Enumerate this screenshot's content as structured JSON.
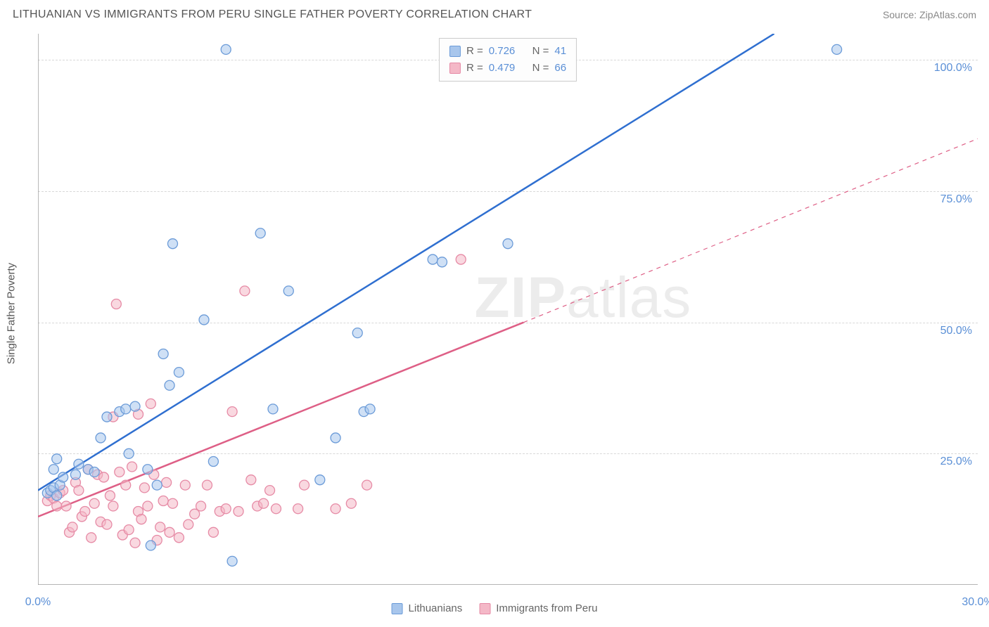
{
  "title": "LITHUANIAN VS IMMIGRANTS FROM PERU SINGLE FATHER POVERTY CORRELATION CHART",
  "source_label": "Source: ZipAtlas.com",
  "ylabel": "Single Father Poverty",
  "watermark_main": "ZIP",
  "watermark_sub": "atlas",
  "chart": {
    "type": "scatter",
    "xlim": [
      0,
      30
    ],
    "ylim": [
      0,
      105
    ],
    "xticks": [
      {
        "v": 0,
        "label": "0.0%"
      },
      {
        "v": 30,
        "label": "30.0%"
      }
    ],
    "yticks": [
      {
        "v": 25,
        "label": "25.0%"
      },
      {
        "v": 50,
        "label": "50.0%"
      },
      {
        "v": 75,
        "label": "75.0%"
      },
      {
        "v": 100,
        "label": "100.0%"
      }
    ],
    "background_color": "#ffffff",
    "grid_color": "#d8d8d8",
    "axis_color": "#888888",
    "tick_label_color": "#5a8fd6",
    "marker_radius": 7,
    "marker_opacity": 0.55,
    "line_width": 2.5,
    "series": [
      {
        "id": "lithuanians",
        "label": "Lithuanians",
        "color_fill": "#a8c6ec",
        "color_stroke": "#6b9bd8",
        "line_color": "#2f6fd0",
        "line_dash": "none",
        "R": "0.726",
        "N": "41",
        "trend": {
          "x1": 0,
          "y1": 18,
          "x2": 23.5,
          "y2": 105
        },
        "points": [
          [
            0.3,
            17.5
          ],
          [
            0.4,
            18
          ],
          [
            0.5,
            18.5
          ],
          [
            0.6,
            17
          ],
          [
            0.7,
            19
          ],
          [
            0.8,
            20.5
          ],
          [
            0.5,
            22
          ],
          [
            0.6,
            24
          ],
          [
            1.2,
            21
          ],
          [
            1.3,
            23
          ],
          [
            1.6,
            22
          ],
          [
            1.8,
            21.5
          ],
          [
            2.0,
            28
          ],
          [
            2.2,
            32
          ],
          [
            2.6,
            33
          ],
          [
            2.8,
            33.5
          ],
          [
            2.9,
            25
          ],
          [
            3.1,
            34
          ],
          [
            3.5,
            22
          ],
          [
            3.6,
            7.5
          ],
          [
            3.8,
            19
          ],
          [
            4.0,
            44
          ],
          [
            4.2,
            38
          ],
          [
            4.3,
            65
          ],
          [
            4.5,
            40.5
          ],
          [
            5.3,
            50.5
          ],
          [
            5.6,
            23.5
          ],
          [
            6.2,
            4.5
          ],
          [
            6.0,
            102
          ],
          [
            7.1,
            67
          ],
          [
            7.5,
            33.5
          ],
          [
            8.0,
            56
          ],
          [
            9.5,
            28
          ],
          [
            10.2,
            48
          ],
          [
            10.4,
            33
          ],
          [
            10.6,
            33.5
          ],
          [
            12.6,
            62
          ],
          [
            12.9,
            61.5
          ],
          [
            15.0,
            65
          ],
          [
            9.0,
            20
          ],
          [
            25.5,
            102
          ]
        ]
      },
      {
        "id": "peru",
        "label": "Immigrants from Peru",
        "color_fill": "#f4b8c7",
        "color_stroke": "#e68aa5",
        "line_color": "#de5f86",
        "line_dash": "dashed",
        "dash_extend": {
          "x1": 15.5,
          "y1": 50,
          "x2": 30,
          "y2": 85
        },
        "R": "0.479",
        "N": "66",
        "trend": {
          "x1": 0,
          "y1": 13,
          "x2": 15.5,
          "y2": 50
        },
        "points": [
          [
            0.3,
            16
          ],
          [
            0.4,
            17
          ],
          [
            0.5,
            16.5
          ],
          [
            0.6,
            15
          ],
          [
            0.7,
            17.5
          ],
          [
            0.8,
            18
          ],
          [
            0.9,
            15
          ],
          [
            1.0,
            10
          ],
          [
            1.1,
            11
          ],
          [
            1.2,
            19.5
          ],
          [
            1.3,
            18
          ],
          [
            1.4,
            13
          ],
          [
            1.5,
            14
          ],
          [
            1.6,
            22
          ],
          [
            1.7,
            9
          ],
          [
            1.8,
            15.5
          ],
          [
            1.9,
            21
          ],
          [
            2.0,
            12
          ],
          [
            2.1,
            20.5
          ],
          [
            2.2,
            11.5
          ],
          [
            2.3,
            17
          ],
          [
            2.4,
            15
          ],
          [
            2.5,
            53.5
          ],
          [
            2.6,
            21.5
          ],
          [
            2.7,
            9.5
          ],
          [
            2.8,
            19
          ],
          [
            2.9,
            10.5
          ],
          [
            3.0,
            22.5
          ],
          [
            3.1,
            8
          ],
          [
            3.2,
            14
          ],
          [
            3.3,
            12.5
          ],
          [
            3.4,
            18.5
          ],
          [
            3.5,
            15
          ],
          [
            3.6,
            34.5
          ],
          [
            3.7,
            21
          ],
          [
            3.8,
            8.5
          ],
          [
            3.9,
            11
          ],
          [
            4.0,
            16
          ],
          [
            4.1,
            19.5
          ],
          [
            4.2,
            10
          ],
          [
            4.3,
            15.5
          ],
          [
            4.5,
            9
          ],
          [
            4.7,
            19
          ],
          [
            4.8,
            11.5
          ],
          [
            5.0,
            13.5
          ],
          [
            5.2,
            15
          ],
          [
            5.4,
            19
          ],
          [
            5.6,
            10
          ],
          [
            5.8,
            14
          ],
          [
            6.0,
            14.5
          ],
          [
            6.2,
            33
          ],
          [
            6.4,
            14
          ],
          [
            6.6,
            56
          ],
          [
            6.8,
            20
          ],
          [
            7.0,
            15
          ],
          [
            7.2,
            15.5
          ],
          [
            7.4,
            18
          ],
          [
            7.6,
            14.5
          ],
          [
            8.3,
            14.5
          ],
          [
            8.5,
            19
          ],
          [
            9.5,
            14.5
          ],
          [
            10.0,
            15.5
          ],
          [
            10.5,
            19
          ],
          [
            2.4,
            32
          ],
          [
            3.2,
            32.5
          ],
          [
            13.5,
            62
          ]
        ]
      }
    ]
  },
  "legend_top": {
    "R_label": "R =",
    "N_label": "N ="
  },
  "legend_bottom": {}
}
